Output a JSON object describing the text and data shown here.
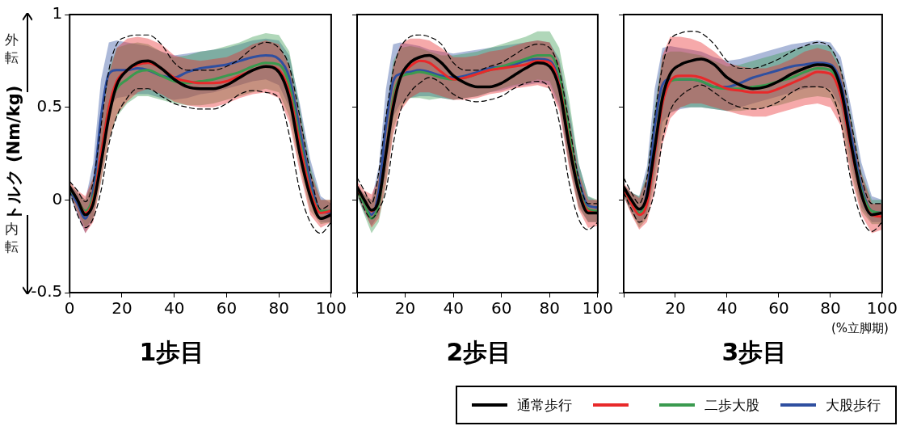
{
  "chart_data": [
    {
      "type": "line",
      "title": "1歩目",
      "ylabel": "トルク (Nm/kg)",
      "annotations": [
        "外転",
        "内転"
      ],
      "legend": "bottom right",
      "xlim": [
        0,
        100
      ],
      "xticks": [
        0,
        20,
        40,
        60,
        80,
        100
      ],
      "ylim": [
        -0.5,
        1
      ],
      "yticks": [
        -0.5,
        0,
        0.5,
        1
      ],
      "grid": false,
      "marker": "none",
      "x": [
        0,
        3,
        6,
        9,
        12,
        15,
        18,
        22,
        26,
        30,
        35,
        40,
        45,
        50,
        55,
        60,
        65,
        70,
        75,
        80,
        84,
        88,
        92,
        96,
        100
      ],
      "series": [
        {
          "name": "通常歩行",
          "color": "#000000",
          "values": [
            0.07,
            0.0,
            -0.08,
            -0.02,
            0.2,
            0.45,
            0.62,
            0.7,
            0.74,
            0.75,
            0.71,
            0.65,
            0.61,
            0.6,
            0.6,
            0.62,
            0.66,
            0.7,
            0.72,
            0.69,
            0.55,
            0.25,
            0.02,
            -0.1,
            -0.08
          ]
        },
        {
          "color": "#000000",
          "line_style": "dashed",
          "values": [
            0.1,
            0.05,
            -0.01,
            0.1,
            0.4,
            0.7,
            0.84,
            0.88,
            0.89,
            0.89,
            0.84,
            0.74,
            0.7,
            0.7,
            0.7,
            0.72,
            0.76,
            0.82,
            0.85,
            0.82,
            0.72,
            0.45,
            0.15,
            -0.05,
            -0.02
          ]
        },
        {
          "color": "#000000",
          "line_style": "dashed",
          "values": [
            0.05,
            -0.08,
            -0.15,
            -0.1,
            0.05,
            0.3,
            0.45,
            0.55,
            0.6,
            0.6,
            0.56,
            0.52,
            0.5,
            0.49,
            0.49,
            0.52,
            0.57,
            0.59,
            0.58,
            0.55,
            0.35,
            0.05,
            -0.12,
            -0.18,
            -0.12
          ]
        },
        {
          "color": "#e8292a",
          "values": [
            0.07,
            0.0,
            -0.07,
            0.0,
            0.25,
            0.5,
            0.64,
            0.7,
            0.73,
            0.74,
            0.71,
            0.66,
            0.64,
            0.63,
            0.63,
            0.64,
            0.67,
            0.7,
            0.72,
            0.7,
            0.58,
            0.3,
            0.05,
            -0.07,
            -0.06
          ],
          "upper": [
            0.1,
            0.05,
            0.02,
            0.12,
            0.4,
            0.68,
            0.82,
            0.87,
            0.88,
            0.87,
            0.84,
            0.78,
            0.76,
            0.75,
            0.76,
            0.77,
            0.8,
            0.84,
            0.86,
            0.84,
            0.72,
            0.45,
            0.15,
            0.0,
            0.0
          ],
          "lower": [
            0.04,
            -0.07,
            -0.18,
            -0.12,
            0.1,
            0.32,
            0.46,
            0.53,
            0.58,
            0.6,
            0.57,
            0.53,
            0.51,
            0.5,
            0.5,
            0.52,
            0.55,
            0.57,
            0.58,
            0.55,
            0.42,
            0.15,
            -0.08,
            -0.15,
            -0.12
          ]
        },
        {
          "name": "二歩大股",
          "color": "#3a9a4f",
          "values": [
            0.06,
            0.0,
            -0.06,
            0.02,
            0.25,
            0.5,
            0.6,
            0.65,
            0.69,
            0.7,
            0.67,
            0.64,
            0.63,
            0.64,
            0.65,
            0.67,
            0.69,
            0.72,
            0.74,
            0.73,
            0.62,
            0.33,
            0.06,
            -0.06,
            -0.06
          ],
          "upper": [
            0.09,
            0.04,
            0.0,
            0.12,
            0.42,
            0.7,
            0.82,
            0.84,
            0.85,
            0.84,
            0.8,
            0.77,
            0.78,
            0.8,
            0.81,
            0.83,
            0.85,
            0.88,
            0.9,
            0.89,
            0.8,
            0.5,
            0.18,
            0.0,
            0.0
          ],
          "lower": [
            0.03,
            -0.06,
            -0.15,
            -0.1,
            0.1,
            0.32,
            0.45,
            0.52,
            0.56,
            0.56,
            0.54,
            0.52,
            0.51,
            0.51,
            0.52,
            0.54,
            0.56,
            0.58,
            0.6,
            0.58,
            0.45,
            0.18,
            -0.06,
            -0.13,
            -0.12
          ]
        },
        {
          "name": "大股歩行",
          "color": "#2f4fa0",
          "values": [
            0.05,
            -0.02,
            -0.1,
            0.05,
            0.45,
            0.68,
            0.7,
            0.7,
            0.71,
            0.7,
            0.67,
            0.66,
            0.69,
            0.71,
            0.72,
            0.73,
            0.75,
            0.77,
            0.78,
            0.76,
            0.66,
            0.38,
            0.1,
            -0.06,
            -0.07
          ],
          "upper": [
            0.08,
            0.04,
            0.0,
            0.2,
            0.65,
            0.85,
            0.86,
            0.85,
            0.84,
            0.83,
            0.8,
            0.78,
            0.79,
            0.8,
            0.81,
            0.82,
            0.84,
            0.86,
            0.87,
            0.86,
            0.78,
            0.52,
            0.22,
            0.02,
            -0.02
          ],
          "lower": [
            0.02,
            -0.08,
            -0.18,
            -0.1,
            0.2,
            0.5,
            0.55,
            0.56,
            0.57,
            0.57,
            0.55,
            0.54,
            0.55,
            0.57,
            0.58,
            0.6,
            0.62,
            0.64,
            0.65,
            0.62,
            0.5,
            0.22,
            -0.02,
            -0.12,
            -0.12
          ]
        }
      ]
    },
    {
      "type": "line",
      "title": "2歩目",
      "xlim": [
        0,
        100
      ],
      "xticks": [
        {
          "value": 0,
          "label": null
        },
        20,
        40,
        60,
        80,
        100
      ],
      "ylim": [
        -0.5,
        1
      ],
      "yticks": [
        -0.5,
        0,
        0.5,
        1
      ],
      "tick_labels": "x",
      "grid": false,
      "marker": "none",
      "x": [
        0,
        3,
        6,
        9,
        12,
        15,
        18,
        22,
        26,
        30,
        35,
        40,
        45,
        50,
        55,
        60,
        65,
        70,
        75,
        80,
        84,
        88,
        92,
        96,
        100
      ],
      "series": [
        {
          "color": "#000000",
          "values": [
            0.07,
            0.0,
            -0.055,
            0.0,
            0.25,
            0.5,
            0.66,
            0.74,
            0.77,
            0.78,
            0.74,
            0.67,
            0.63,
            0.61,
            0.61,
            0.63,
            0.67,
            0.71,
            0.74,
            0.72,
            0.6,
            0.3,
            0.05,
            -0.07,
            -0.07
          ]
        },
        {
          "color": "#000000",
          "line_style": "dashed",
          "values": [
            0.12,
            0.05,
            -0.02,
            0.15,
            0.45,
            0.7,
            0.82,
            0.88,
            0.89,
            0.88,
            0.84,
            0.74,
            0.7,
            0.7,
            0.72,
            0.74,
            0.78,
            0.82,
            0.84,
            0.82,
            0.7,
            0.42,
            0.12,
            -0.02,
            -0.02
          ]
        },
        {
          "color": "#000000",
          "line_style": "dashed",
          "values": [
            0.05,
            -0.05,
            -0.1,
            -0.05,
            0.05,
            0.3,
            0.48,
            0.58,
            0.63,
            0.66,
            0.63,
            0.57,
            0.54,
            0.53,
            0.54,
            0.56,
            0.6,
            0.63,
            0.64,
            0.6,
            0.42,
            0.1,
            -0.1,
            -0.16,
            -0.12
          ]
        },
        {
          "color": "#e8292a",
          "values": [
            0.06,
            0.0,
            -0.06,
            0.0,
            0.25,
            0.52,
            0.66,
            0.72,
            0.75,
            0.74,
            0.69,
            0.65,
            0.66,
            0.68,
            0.7,
            0.71,
            0.72,
            0.73,
            0.75,
            0.74,
            0.62,
            0.32,
            0.06,
            -0.06,
            -0.07
          ],
          "upper": [
            0.1,
            0.05,
            0.03,
            0.12,
            0.42,
            0.72,
            0.84,
            0.87,
            0.87,
            0.86,
            0.82,
            0.77,
            0.77,
            0.78,
            0.8,
            0.81,
            0.83,
            0.85,
            0.86,
            0.85,
            0.74,
            0.45,
            0.15,
            0.0,
            0.0
          ],
          "lower": [
            0.03,
            -0.06,
            -0.15,
            -0.1,
            0.08,
            0.35,
            0.48,
            0.55,
            0.58,
            0.58,
            0.56,
            0.54,
            0.54,
            0.55,
            0.57,
            0.58,
            0.6,
            0.61,
            0.62,
            0.6,
            0.48,
            0.18,
            -0.05,
            -0.15,
            -0.14
          ]
        },
        {
          "color": "#3a9a4f",
          "values": [
            0.05,
            -0.02,
            -0.1,
            -0.02,
            0.25,
            0.55,
            0.66,
            0.68,
            0.69,
            0.68,
            0.66,
            0.65,
            0.66,
            0.68,
            0.7,
            0.72,
            0.74,
            0.76,
            0.78,
            0.78,
            0.68,
            0.38,
            0.08,
            -0.05,
            -0.06
          ],
          "upper": [
            0.08,
            0.03,
            0.0,
            0.12,
            0.45,
            0.75,
            0.82,
            0.83,
            0.82,
            0.8,
            0.78,
            0.78,
            0.79,
            0.8,
            0.82,
            0.84,
            0.86,
            0.88,
            0.91,
            0.91,
            0.82,
            0.55,
            0.2,
            0.02,
            0.0
          ],
          "lower": [
            0.02,
            -0.08,
            -0.18,
            -0.12,
            0.08,
            0.38,
            0.5,
            0.55,
            0.55,
            0.54,
            0.55,
            0.54,
            0.55,
            0.56,
            0.58,
            0.6,
            0.62,
            0.63,
            0.65,
            0.64,
            0.52,
            0.2,
            -0.04,
            -0.12,
            -0.12
          ]
        },
        {
          "color": "#2f4fa0",
          "values": [
            0.05,
            -0.02,
            -0.08,
            0.05,
            0.4,
            0.64,
            0.68,
            0.69,
            0.7,
            0.69,
            0.67,
            0.66,
            0.67,
            0.69,
            0.71,
            0.72,
            0.73,
            0.75,
            0.76,
            0.75,
            0.64,
            0.36,
            0.11,
            -0.03,
            -0.04
          ],
          "upper": [
            0.08,
            0.03,
            0.0,
            0.18,
            0.6,
            0.84,
            0.85,
            0.84,
            0.83,
            0.81,
            0.8,
            0.79,
            0.8,
            0.81,
            0.82,
            0.83,
            0.84,
            0.85,
            0.86,
            0.85,
            0.76,
            0.5,
            0.2,
            0.02,
            -0.01
          ],
          "lower": [
            0.02,
            -0.07,
            -0.14,
            -0.08,
            0.15,
            0.45,
            0.52,
            0.55,
            0.56,
            0.56,
            0.55,
            0.54,
            0.55,
            0.56,
            0.58,
            0.59,
            0.61,
            0.62,
            0.63,
            0.62,
            0.5,
            0.2,
            -0.03,
            -0.12,
            -0.12
          ]
        }
      ]
    },
    {
      "type": "line",
      "title": "3歩目",
      "xlabel": "(%立脚期)",
      "xlim": [
        0,
        100
      ],
      "xticks": [
        {
          "value": 0,
          "label": null
        },
        20,
        40,
        60,
        80,
        100
      ],
      "ylim": [
        -0.5,
        1
      ],
      "yticks": [
        -0.5,
        0,
        0.5,
        1
      ],
      "tick_labels": "x",
      "grid": false,
      "marker": "none",
      "x": [
        0,
        3,
        6,
        9,
        12,
        15,
        18,
        22,
        26,
        30,
        35,
        40,
        45,
        50,
        55,
        60,
        65,
        70,
        75,
        80,
        84,
        88,
        92,
        96,
        100
      ],
      "series": [
        {
          "color": "#000000",
          "values": [
            0.07,
            0.0,
            -0.05,
            0.02,
            0.28,
            0.55,
            0.68,
            0.73,
            0.75,
            0.76,
            0.73,
            0.66,
            0.62,
            0.6,
            0.61,
            0.64,
            0.68,
            0.71,
            0.73,
            0.72,
            0.6,
            0.3,
            0.03,
            -0.08,
            -0.07
          ]
        },
        {
          "color": "#000000",
          "line_style": "dashed",
          "values": [
            0.12,
            0.04,
            -0.02,
            0.12,
            0.45,
            0.72,
            0.86,
            0.9,
            0.91,
            0.9,
            0.84,
            0.75,
            0.71,
            0.71,
            0.73,
            0.76,
            0.8,
            0.83,
            0.85,
            0.82,
            0.7,
            0.42,
            0.12,
            -0.02,
            -0.02
          ]
        },
        {
          "color": "#000000",
          "line_style": "dashed",
          "values": [
            0.04,
            -0.05,
            -0.12,
            -0.08,
            0.05,
            0.32,
            0.48,
            0.56,
            0.6,
            0.62,
            0.58,
            0.53,
            0.5,
            0.49,
            0.5,
            0.53,
            0.58,
            0.61,
            0.61,
            0.58,
            0.42,
            0.1,
            -0.1,
            -0.17,
            -0.12
          ]
        },
        {
          "color": "#e8292a",
          "values": [
            0.06,
            -0.02,
            -0.08,
            -0.02,
            0.25,
            0.52,
            0.64,
            0.67,
            0.67,
            0.66,
            0.63,
            0.6,
            0.59,
            0.58,
            0.58,
            0.6,
            0.63,
            0.66,
            0.69,
            0.68,
            0.56,
            0.28,
            0.03,
            -0.08,
            -0.09
          ],
          "upper": [
            0.09,
            0.04,
            0.01,
            0.12,
            0.45,
            0.78,
            0.88,
            0.88,
            0.87,
            0.85,
            0.8,
            0.74,
            0.72,
            0.71,
            0.71,
            0.73,
            0.76,
            0.8,
            0.82,
            0.8,
            0.7,
            0.42,
            0.14,
            -0.02,
            -0.02
          ],
          "lower": [
            0.02,
            -0.08,
            -0.16,
            -0.12,
            0.05,
            0.3,
            0.44,
            0.5,
            0.52,
            0.52,
            0.5,
            0.48,
            0.46,
            0.45,
            0.45,
            0.47,
            0.49,
            0.51,
            0.52,
            0.5,
            0.4,
            0.12,
            -0.08,
            -0.18,
            -0.16
          ]
        },
        {
          "color": "#3a9a4f",
          "values": [
            0.05,
            -0.02,
            -0.07,
            0.0,
            0.28,
            0.56,
            0.64,
            0.65,
            0.65,
            0.64,
            0.61,
            0.6,
            0.6,
            0.61,
            0.62,
            0.64,
            0.66,
            0.69,
            0.71,
            0.7,
            0.58,
            0.3,
            0.05,
            -0.06,
            -0.07
          ],
          "upper": [
            0.08,
            0.04,
            0.02,
            0.14,
            0.5,
            0.78,
            0.8,
            0.8,
            0.79,
            0.78,
            0.75,
            0.72,
            0.73,
            0.75,
            0.77,
            0.79,
            0.81,
            0.83,
            0.84,
            0.83,
            0.72,
            0.45,
            0.15,
            0.0,
            0.0
          ],
          "lower": [
            0.02,
            -0.07,
            -0.15,
            -0.1,
            0.1,
            0.35,
            0.47,
            0.5,
            0.5,
            0.5,
            0.49,
            0.48,
            0.48,
            0.49,
            0.5,
            0.51,
            0.53,
            0.55,
            0.56,
            0.55,
            0.44,
            0.15,
            -0.06,
            -0.13,
            -0.13
          ]
        },
        {
          "color": "#2f4fa0",
          "values": [
            0.05,
            -0.02,
            -0.07,
            0.04,
            0.4,
            0.62,
            0.65,
            0.65,
            0.65,
            0.64,
            0.61,
            0.61,
            0.63,
            0.66,
            0.68,
            0.7,
            0.72,
            0.73,
            0.74,
            0.73,
            0.63,
            0.35,
            0.07,
            -0.06,
            -0.07
          ],
          "upper": [
            0.08,
            0.04,
            0.02,
            0.18,
            0.6,
            0.82,
            0.83,
            0.82,
            0.81,
            0.8,
            0.77,
            0.75,
            0.76,
            0.78,
            0.8,
            0.82,
            0.84,
            0.85,
            0.86,
            0.85,
            0.77,
            0.5,
            0.2,
            0.02,
            0.0
          ],
          "lower": [
            0.02,
            -0.07,
            -0.13,
            -0.08,
            0.15,
            0.42,
            0.47,
            0.49,
            0.5,
            0.5,
            0.49,
            0.48,
            0.5,
            0.52,
            0.54,
            0.56,
            0.58,
            0.6,
            0.61,
            0.6,
            0.5,
            0.2,
            -0.04,
            -0.12,
            -0.12
          ]
        }
      ]
    }
  ]
}
